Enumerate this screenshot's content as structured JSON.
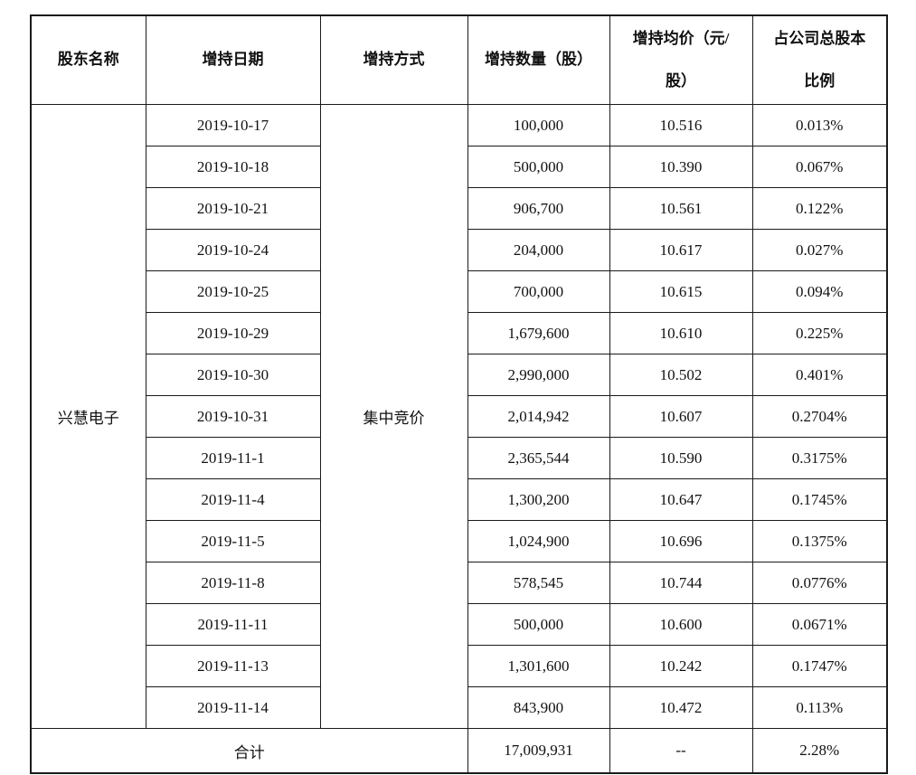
{
  "document": {
    "background": "#ffffff",
    "border_color": "#1a1a1a",
    "text_color": "#111111"
  },
  "table": {
    "columns": [
      {
        "label": "股东名称"
      },
      {
        "label": "增持日期"
      },
      {
        "label": "增持方式"
      },
      {
        "label": "增持数量（股）"
      },
      {
        "label": "增持均价（元/\n股）"
      },
      {
        "label": "占公司总股本\n比例"
      }
    ],
    "shareholder": "兴慧电子",
    "method": "集中竞价",
    "rows": [
      {
        "date": "2019-10-17",
        "quantity": "100,000",
        "avg_price": "10.516",
        "pct": "0.013%"
      },
      {
        "date": "2019-10-18",
        "quantity": "500,000",
        "avg_price": "10.390",
        "pct": "0.067%"
      },
      {
        "date": "2019-10-21",
        "quantity": "906,700",
        "avg_price": "10.561",
        "pct": "0.122%"
      },
      {
        "date": "2019-10-24",
        "quantity": "204,000",
        "avg_price": "10.617",
        "pct": "0.027%"
      },
      {
        "date": "2019-10-25",
        "quantity": "700,000",
        "avg_price": "10.615",
        "pct": "0.094%"
      },
      {
        "date": "2019-10-29",
        "quantity": "1,679,600",
        "avg_price": "10.610",
        "pct": "0.225%"
      },
      {
        "date": "2019-10-30",
        "quantity": "2,990,000",
        "avg_price": "10.502",
        "pct": "0.401%"
      },
      {
        "date": "2019-10-31",
        "quantity": "2,014,942",
        "avg_price": "10.607",
        "pct": "0.2704%"
      },
      {
        "date": "2019-11-1",
        "quantity": "2,365,544",
        "avg_price": "10.590",
        "pct": "0.3175%"
      },
      {
        "date": "2019-11-4",
        "quantity": "1,300,200",
        "avg_price": "10.647",
        "pct": "0.1745%"
      },
      {
        "date": "2019-11-5",
        "quantity": "1,024,900",
        "avg_price": "10.696",
        "pct": "0.1375%"
      },
      {
        "date": "2019-11-8",
        "quantity": "578,545",
        "avg_price": "10.744",
        "pct": "0.0776%"
      },
      {
        "date": "2019-11-11",
        "quantity": "500,000",
        "avg_price": "10.600",
        "pct": "0.0671%"
      },
      {
        "date": "2019-11-13",
        "quantity": "1,301,600",
        "avg_price": "10.242",
        "pct": "0.1747%"
      },
      {
        "date": "2019-11-14",
        "quantity": "843,900",
        "avg_price": "10.472",
        "pct": "0.113%"
      }
    ],
    "total": {
      "label": "合计",
      "quantity": "17,009,931",
      "avg_price": "--",
      "pct": "2.28%"
    }
  }
}
